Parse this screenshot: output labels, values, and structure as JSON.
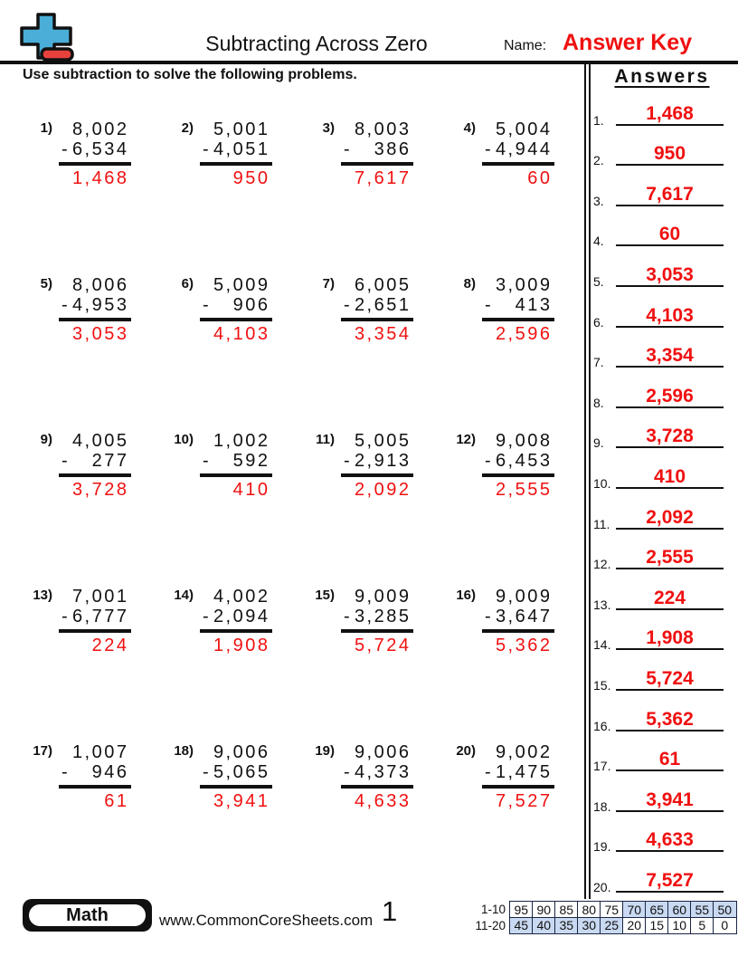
{
  "header": {
    "title": "Subtracting Across Zero",
    "name_label": "Name:",
    "name_value": "Answer Key",
    "instruction": "Use subtraction to solve the following problems."
  },
  "problems": [
    {
      "num": "1)",
      "minuend": "8,002",
      "minus": "-",
      "subtrahend": "6,534",
      "answer": "1,468"
    },
    {
      "num": "2)",
      "minuend": "5,001",
      "minus": "-",
      "subtrahend": "4,051",
      "answer": "950"
    },
    {
      "num": "3)",
      "minuend": "8,003",
      "minus": "-",
      "subtrahend": "386",
      "answer": "7,617"
    },
    {
      "num": "4)",
      "minuend": "5,004",
      "minus": "-",
      "subtrahend": "4,944",
      "answer": "60"
    },
    {
      "num": "5)",
      "minuend": "8,006",
      "minus": "-",
      "subtrahend": "4,953",
      "answer": "3,053"
    },
    {
      "num": "6)",
      "minuend": "5,009",
      "minus": "-",
      "subtrahend": "906",
      "answer": "4,103"
    },
    {
      "num": "7)",
      "minuend": "6,005",
      "minus": "-",
      "subtrahend": "2,651",
      "answer": "3,354"
    },
    {
      "num": "8)",
      "minuend": "3,009",
      "minus": "-",
      "subtrahend": "413",
      "answer": "2,596"
    },
    {
      "num": "9)",
      "minuend": "4,005",
      "minus": "-",
      "subtrahend": "277",
      "answer": "3,728"
    },
    {
      "num": "10)",
      "minuend": "1,002",
      "minus": "-",
      "subtrahend": "592",
      "answer": "410"
    },
    {
      "num": "11)",
      "minuend": "5,005",
      "minus": "-",
      "subtrahend": "2,913",
      "answer": "2,092"
    },
    {
      "num": "12)",
      "minuend": "9,008",
      "minus": "-",
      "subtrahend": "6,453",
      "answer": "2,555"
    },
    {
      "num": "13)",
      "minuend": "7,001",
      "minus": "-",
      "subtrahend": "6,777",
      "answer": "224"
    },
    {
      "num": "14)",
      "minuend": "4,002",
      "minus": "-",
      "subtrahend": "2,094",
      "answer": "1,908"
    },
    {
      "num": "15)",
      "minuend": "9,009",
      "minus": "-",
      "subtrahend": "3,285",
      "answer": "5,724"
    },
    {
      "num": "16)",
      "minuend": "9,009",
      "minus": "-",
      "subtrahend": "3,647",
      "answer": "5,362"
    },
    {
      "num": "17)",
      "minuend": "1,007",
      "minus": "-",
      "subtrahend": "946",
      "answer": "61"
    },
    {
      "num": "18)",
      "minuend": "9,006",
      "minus": "-",
      "subtrahend": "5,065",
      "answer": "3,941"
    },
    {
      "num": "19)",
      "minuend": "9,006",
      "minus": "-",
      "subtrahend": "4,373",
      "answer": "4,633"
    },
    {
      "num": "20)",
      "minuend": "9,002",
      "minus": "-",
      "subtrahend": "1,475",
      "answer": "7,527"
    }
  ],
  "answers_panel": {
    "heading": "Answers",
    "items": [
      {
        "num": "1.",
        "value": "1,468"
      },
      {
        "num": "2.",
        "value": "950"
      },
      {
        "num": "3.",
        "value": "7,617"
      },
      {
        "num": "4.",
        "value": "60"
      },
      {
        "num": "5.",
        "value": "3,053"
      },
      {
        "num": "6.",
        "value": "4,103"
      },
      {
        "num": "7.",
        "value": "3,354"
      },
      {
        "num": "8.",
        "value": "2,596"
      },
      {
        "num": "9.",
        "value": "3,728"
      },
      {
        "num": "10.",
        "value": "410"
      },
      {
        "num": "11.",
        "value": "2,092"
      },
      {
        "num": "12.",
        "value": "2,555"
      },
      {
        "num": "13.",
        "value": "224"
      },
      {
        "num": "14.",
        "value": "1,908"
      },
      {
        "num": "15.",
        "value": "5,724"
      },
      {
        "num": "16.",
        "value": "5,362"
      },
      {
        "num": "17.",
        "value": "61"
      },
      {
        "num": "18.",
        "value": "3,941"
      },
      {
        "num": "19.",
        "value": "4,633"
      },
      {
        "num": "20.",
        "value": "7,527"
      }
    ]
  },
  "footer": {
    "subject_badge": "Math",
    "website": "www.CommonCoreSheets.com",
    "page_number": "1",
    "score_table": {
      "row1": {
        "label": "1-10",
        "cells": [
          "95",
          "90",
          "85",
          "80",
          "75",
          "70",
          "65",
          "60",
          "55",
          "50"
        ],
        "highlighted": [
          5,
          6,
          7,
          8,
          9
        ]
      },
      "row2": {
        "label": "11-20",
        "cells": [
          "45",
          "40",
          "35",
          "30",
          "25",
          "20",
          "15",
          "10",
          "5",
          "0"
        ],
        "highlighted": [
          0,
          1,
          2,
          3,
          4
        ]
      }
    }
  },
  "colors": {
    "answer_red": "#f01010",
    "logo_plus_blue": "#4aaed8",
    "logo_minus_red": "#e8413c",
    "score_highlight_blue": "#c9d9f1",
    "ink": "#111111"
  }
}
